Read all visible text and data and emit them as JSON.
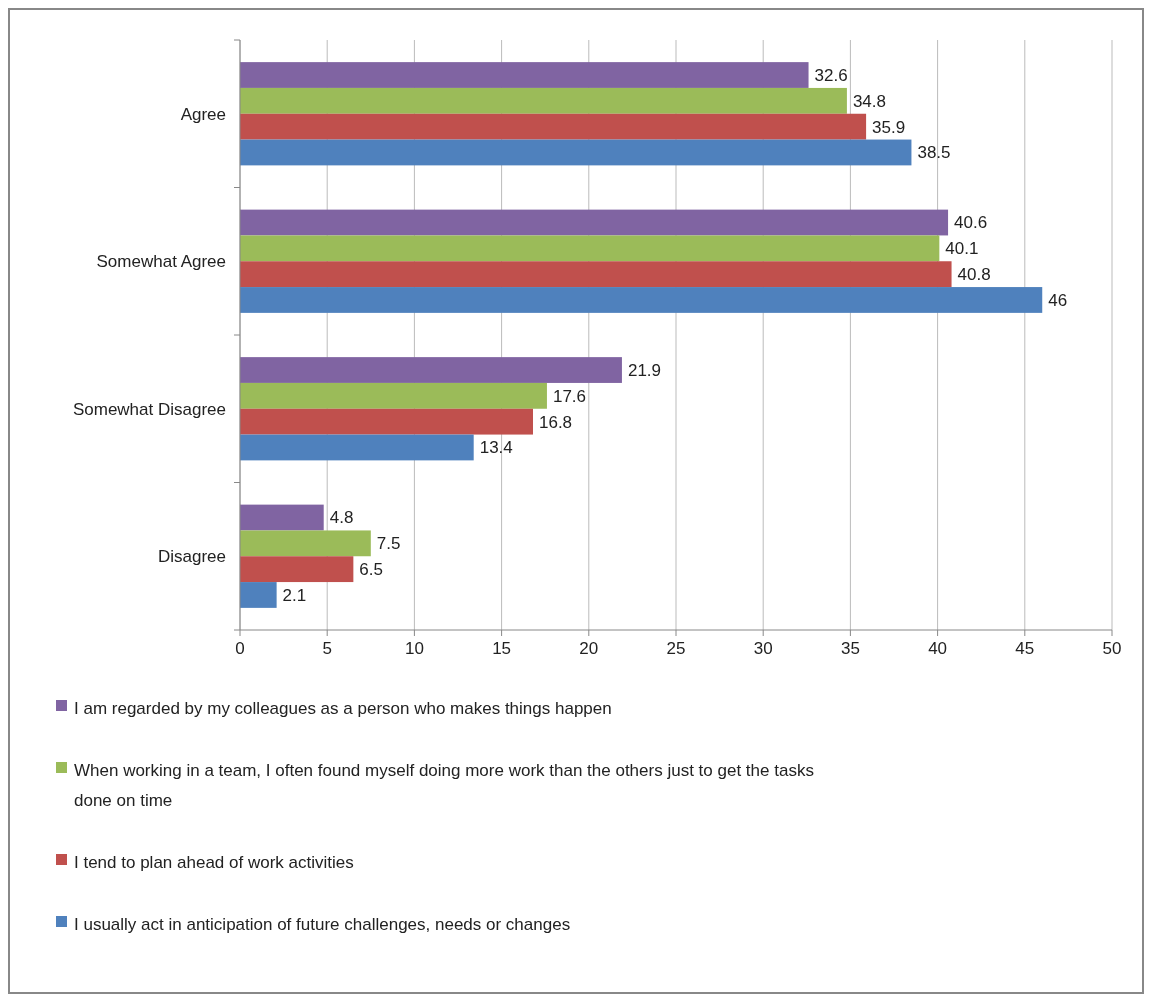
{
  "chart_data": {
    "type": "bar",
    "orientation": "horizontal",
    "categories": [
      "Agree",
      "Somewhat Agree",
      "Somewhat Disagree",
      "Disagree"
    ],
    "series": [
      {
        "name": "I am regarded by my colleagues as a person who makes things happen",
        "color": "#8064a2",
        "values": [
          32.6,
          40.6,
          21.9,
          4.8
        ]
      },
      {
        "name": "When working in a team, I often found myself doing more work than the others just to get the tasks done on time",
        "color": "#9bbb59",
        "values": [
          34.8,
          40.1,
          17.6,
          7.5
        ]
      },
      {
        "name": "I tend to plan ahead of work activities",
        "color": "#c0504d",
        "values": [
          35.9,
          40.8,
          16.8,
          6.5
        ]
      },
      {
        "name": "I usually act in anticipation of future challenges, needs or changes",
        "color": "#4f81bd",
        "values": [
          38.5,
          46,
          13.4,
          2.1
        ]
      }
    ],
    "xlim": [
      0,
      50
    ],
    "xticks": [
      0,
      5,
      10,
      15,
      20,
      25,
      30,
      35,
      40,
      45,
      50
    ],
    "grid": "x",
    "legend": "bottom",
    "data_labels": true
  }
}
